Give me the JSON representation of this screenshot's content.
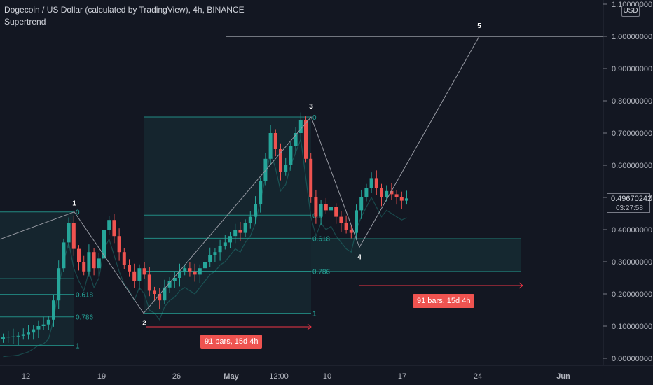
{
  "header": {
    "title": "Dogecoin / US Dollar (calculated by TradingView), 4h, BINANCE",
    "indicator": "Supertrend"
  },
  "price_axis": {
    "currency": "USD",
    "last_price": "0.49670242",
    "countdown": "03:27:58",
    "ticks": [
      "1.10000000",
      "1.00000000",
      "0.90000000",
      "0.80000000",
      "0.70000000",
      "0.60000000",
      "0.50000000",
      "0.40000000",
      "0.30000000",
      "0.20000000",
      "0.10000000",
      "0.00000000"
    ]
  },
  "colors": {
    "background": "#131722",
    "up": "#26a69a",
    "down": "#ef5350",
    "fib": "#26a69a",
    "wave_line": "#9598a1",
    "target_line": "#d1d4dc",
    "range_arrow": "#f23645"
  },
  "annotations": {
    "range_label_1": "91 bars, 15d 4h",
    "range_label_2": "91 bars, 15d 4h"
  },
  "chart_data": {
    "type": "candlestick",
    "title": "Dogecoin / US Dollar (calculated by TradingView), 4h, BINANCE",
    "x_axis": {
      "ticks": [
        "12",
        "19",
        "26",
        "May",
        "12:00",
        "10",
        "17",
        "24",
        "Jun"
      ]
    },
    "y_axis": {
      "range": [
        0.0,
        1.1
      ],
      "scale": "linear"
    },
    "waves": [
      {
        "label": "1",
        "price": 0.455
      },
      {
        "label": "2",
        "price": 0.14
      },
      {
        "label": "3",
        "price": 0.75
      },
      {
        "label": "4",
        "price": 0.345
      },
      {
        "label": "5",
        "price": 1.0
      }
    ],
    "target_level": 1.0,
    "fib_retracements": [
      {
        "levels": [
          "0",
          "0.5",
          "0.618",
          "0.786",
          "1"
        ],
        "high": 0.455,
        "low": 0.04
      },
      {
        "levels": [
          "0",
          "0.5",
          "0.618",
          "0.786",
          "1"
        ],
        "high": 0.75,
        "low": 0.14
      }
    ],
    "fib_label_texts": [
      "0",
      "0.618",
      "0.786",
      "1",
      "0",
      "0.5",
      "0.618",
      "0.786",
      "1"
    ],
    "closes": [
      0.065,
      0.067,
      0.068,
      0.07,
      0.075,
      0.08,
      0.09,
      0.1,
      0.105,
      0.12,
      0.18,
      0.28,
      0.36,
      0.42,
      0.34,
      0.3,
      0.27,
      0.33,
      0.28,
      0.31,
      0.4,
      0.43,
      0.38,
      0.33,
      0.29,
      0.27,
      0.24,
      0.28,
      0.26,
      0.21,
      0.2,
      0.18,
      0.22,
      0.24,
      0.25,
      0.27,
      0.28,
      0.27,
      0.26,
      0.28,
      0.3,
      0.32,
      0.33,
      0.35,
      0.36,
      0.38,
      0.4,
      0.39,
      0.42,
      0.44,
      0.48,
      0.55,
      0.62,
      0.7,
      0.65,
      0.58,
      0.6,
      0.66,
      0.7,
      0.74,
      0.62,
      0.5,
      0.44,
      0.48,
      0.46,
      0.47,
      0.44,
      0.42,
      0.4,
      0.39,
      0.46,
      0.5,
      0.53,
      0.56,
      0.53,
      0.5,
      0.52,
      0.51,
      0.5,
      0.49,
      0.497
    ]
  }
}
